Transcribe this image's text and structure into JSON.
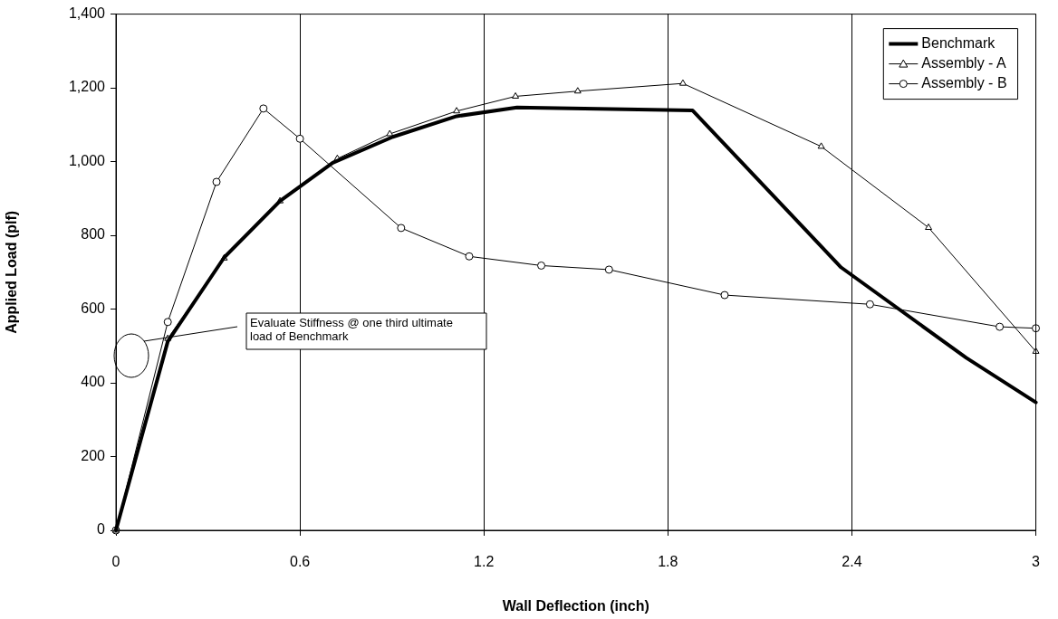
{
  "chart_data": {
    "type": "line",
    "xlabel": "Wall Deflection (inch)",
    "ylabel": "Applied Load (plf)",
    "xlim": [
      0,
      3
    ],
    "xticks": [
      0,
      0.6,
      1.2,
      1.8,
      2.4,
      3
    ],
    "ylim": [
      0,
      1400
    ],
    "yticks": [
      0,
      200,
      400,
      600,
      800,
      {
        "value": 1000,
        "label": "1,000"
      },
      {
        "value": 1200,
        "label": "1,200"
      },
      {
        "value": 1400,
        "label": "1,400"
      }
    ],
    "grid": "x",
    "legend": "top right",
    "line_style": "solid",
    "series": [
      {
        "name": "Benchmark",
        "color": "#000000",
        "marker": "none",
        "x": [
          0,
          0.169,
          0.353,
          0.535,
          0.707,
          0.903,
          1.111,
          1.308,
          1.88,
          2.365,
          2.773,
          3
        ],
        "values": [
          0,
          512,
          740,
          893,
          997,
          1067,
          1123,
          1147,
          1139,
          713,
          468,
          347
        ]
      },
      {
        "name": "Assembly - A",
        "color": "#000000",
        "marker": "triangle",
        "x": [
          0,
          0.169,
          0.353,
          0.535,
          0.722,
          0.893,
          1.111,
          1.303,
          1.506,
          1.849,
          2.3,
          2.65,
          3
        ],
        "values": [
          0,
          520,
          738,
          893,
          1008,
          1075,
          1137,
          1177,
          1191,
          1212,
          1041,
          821,
          485
        ]
      },
      {
        "name": "Assembly - B",
        "color": "#000000",
        "marker": "circle",
        "x": [
          0,
          0.169,
          0.328,
          0.481,
          0.6,
          0.93,
          1.152,
          1.387,
          1.608,
          1.985,
          2.459,
          2.882,
          3
        ],
        "values": [
          0,
          565,
          945,
          1144,
          1062,
          820,
          743,
          718,
          707,
          638,
          613,
          552,
          548
        ]
      }
    ],
    "annotations": [
      "Evaluate Stiffness @ one third ultimate load of Benchmark"
    ]
  }
}
